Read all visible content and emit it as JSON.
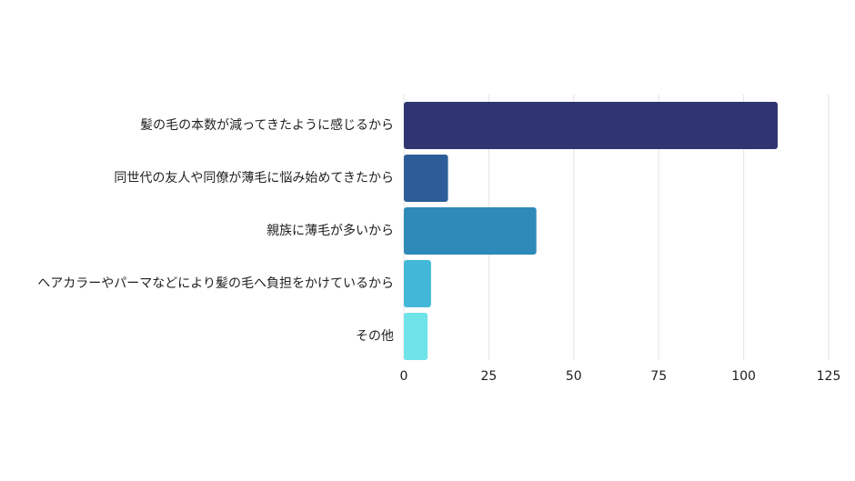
{
  "chart_data": {
    "type": "bar",
    "orientation": "horizontal",
    "categories": [
      "髪の毛の本数が減ってきたように感じるから",
      "同世代の友人や同僚が薄毛に悩み始めてきたから",
      "親族に薄毛が多いから",
      "ヘアカラーやパーマなどにより髪の毛へ負担をかけているから",
      "その他"
    ],
    "values": [
      110,
      13,
      39,
      8,
      7
    ],
    "colors": [
      "#2e3570",
      "#2d5d98",
      "#2e8ab8",
      "#42b7d7",
      "#6ee3e8"
    ],
    "xlim": [
      0,
      125
    ],
    "xticks": [
      "0",
      "25",
      "50",
      "75",
      "100",
      "125"
    ],
    "grid": true,
    "title": "",
    "xlabel": "",
    "ylabel": ""
  }
}
